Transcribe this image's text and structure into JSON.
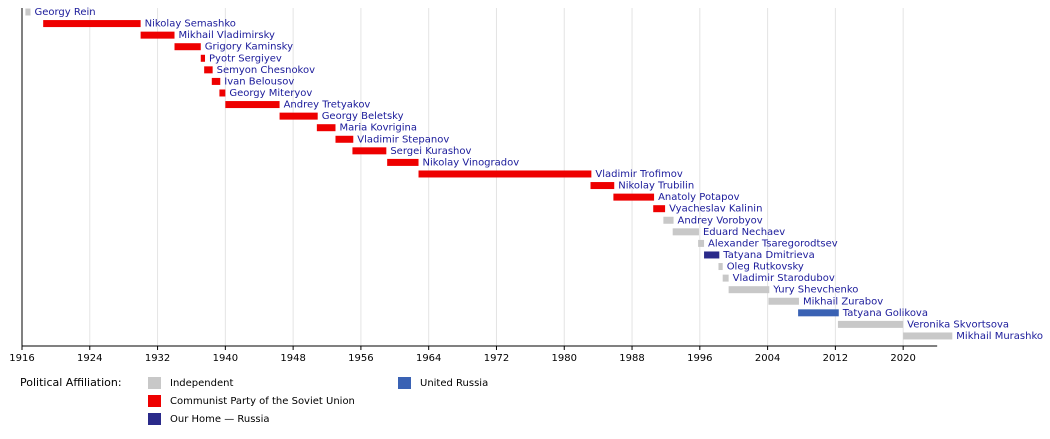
{
  "chart_data": {
    "type": "timeline",
    "legend_title": "Political Affiliation:",
    "parties": [
      {
        "name": "Independent",
        "color": "#c8c8c8"
      },
      {
        "name": "Communist Party of the Soviet Union",
        "color": "#ee0000"
      },
      {
        "name": "Our Home — Russia",
        "color": "#2a2a8a"
      },
      {
        "name": "United Russia",
        "color": "#3a62b4"
      }
    ],
    "bars": [
      {
        "name": "Georgy Rein",
        "start": 1916.4,
        "end": 1917.0,
        "party": 0
      },
      {
        "name": "Nikolay Semashko",
        "start": 1918.5,
        "end": 1930.0,
        "party": 1
      },
      {
        "name": "Mikhail Vladimirsky",
        "start": 1930.0,
        "end": 1934.0,
        "party": 1
      },
      {
        "name": "Grigory Kaminsky",
        "start": 1934.0,
        "end": 1937.1,
        "party": 1
      },
      {
        "name": "Pyotr Sergiyev",
        "start": 1937.1,
        "end": 1937.6,
        "party": 1
      },
      {
        "name": "Semyon Chesnokov",
        "start": 1937.5,
        "end": 1938.5,
        "party": 1
      },
      {
        "name": "Ivan Belousov",
        "start": 1938.4,
        "end": 1939.4,
        "party": 1
      },
      {
        "name": "Georgy Miteryov",
        "start": 1939.3,
        "end": 1940.0,
        "party": 1
      },
      {
        "name": "Andrey Tretyakov",
        "start": 1940.0,
        "end": 1946.4,
        "party": 1
      },
      {
        "name": "Georgy Beletsky",
        "start": 1946.4,
        "end": 1950.9,
        "party": 1
      },
      {
        "name": "Maria Kovrigina",
        "start": 1950.8,
        "end": 1953.0,
        "party": 1
      },
      {
        "name": "Vladimir Stepanov",
        "start": 1953.0,
        "end": 1955.1,
        "party": 1
      },
      {
        "name": "Sergei Kurashov",
        "start": 1955.0,
        "end": 1959.0,
        "party": 1
      },
      {
        "name": "Nikolay Vinogradov",
        "start": 1959.1,
        "end": 1962.8,
        "party": 1
      },
      {
        "name": "Vladimir Trofimov",
        "start": 1962.8,
        "end": 1983.2,
        "party": 1
      },
      {
        "name": "Nikolay Trubilin",
        "start": 1983.1,
        "end": 1985.9,
        "party": 1
      },
      {
        "name": "Anatoly Potapov",
        "start": 1985.8,
        "end": 1990.6,
        "party": 1
      },
      {
        "name": "Vyacheslav Kalinin",
        "start": 1990.5,
        "end": 1991.9,
        "party": 1
      },
      {
        "name": "Andrey Vorobyov",
        "start": 1991.7,
        "end": 1992.9,
        "party": 0
      },
      {
        "name": "Eduard Nechaev",
        "start": 1992.8,
        "end": 1995.9,
        "party": 0
      },
      {
        "name": "Alexander Tsaregorodtsev",
        "start": 1995.8,
        "end": 1996.5,
        "party": 0
      },
      {
        "name": "Tatyana Dmitrieva",
        "start": 1996.5,
        "end": 1998.3,
        "party": 2
      },
      {
        "name": "Oleg Rutkovsky",
        "start": 1998.2,
        "end": 1998.7,
        "party": 0
      },
      {
        "name": "Vladimir Starodubov",
        "start": 1998.7,
        "end": 1999.4,
        "party": 0
      },
      {
        "name": "Yury Shevchenko",
        "start": 1999.4,
        "end": 2004.2,
        "party": 0
      },
      {
        "name": "Mikhail Zurabov",
        "start": 2004.1,
        "end": 2007.7,
        "party": 0
      },
      {
        "name": "Tatyana Golikova",
        "start": 2007.6,
        "end": 2012.4,
        "party": 3
      },
      {
        "name": "Veronika Skvortsova",
        "start": 2012.3,
        "end": 2020.0,
        "party": 0
      },
      {
        "name": "Mikhail Murashko",
        "start": 2020.0,
        "end": 2025.8,
        "party": 0
      }
    ],
    "xlim": [
      1916,
      2026
    ],
    "xticks": [
      1916,
      1924,
      1932,
      1940,
      1948,
      1956,
      1964,
      1972,
      1980,
      1988,
      1996,
      2004,
      2012,
      2020
    ],
    "grid": true
  }
}
